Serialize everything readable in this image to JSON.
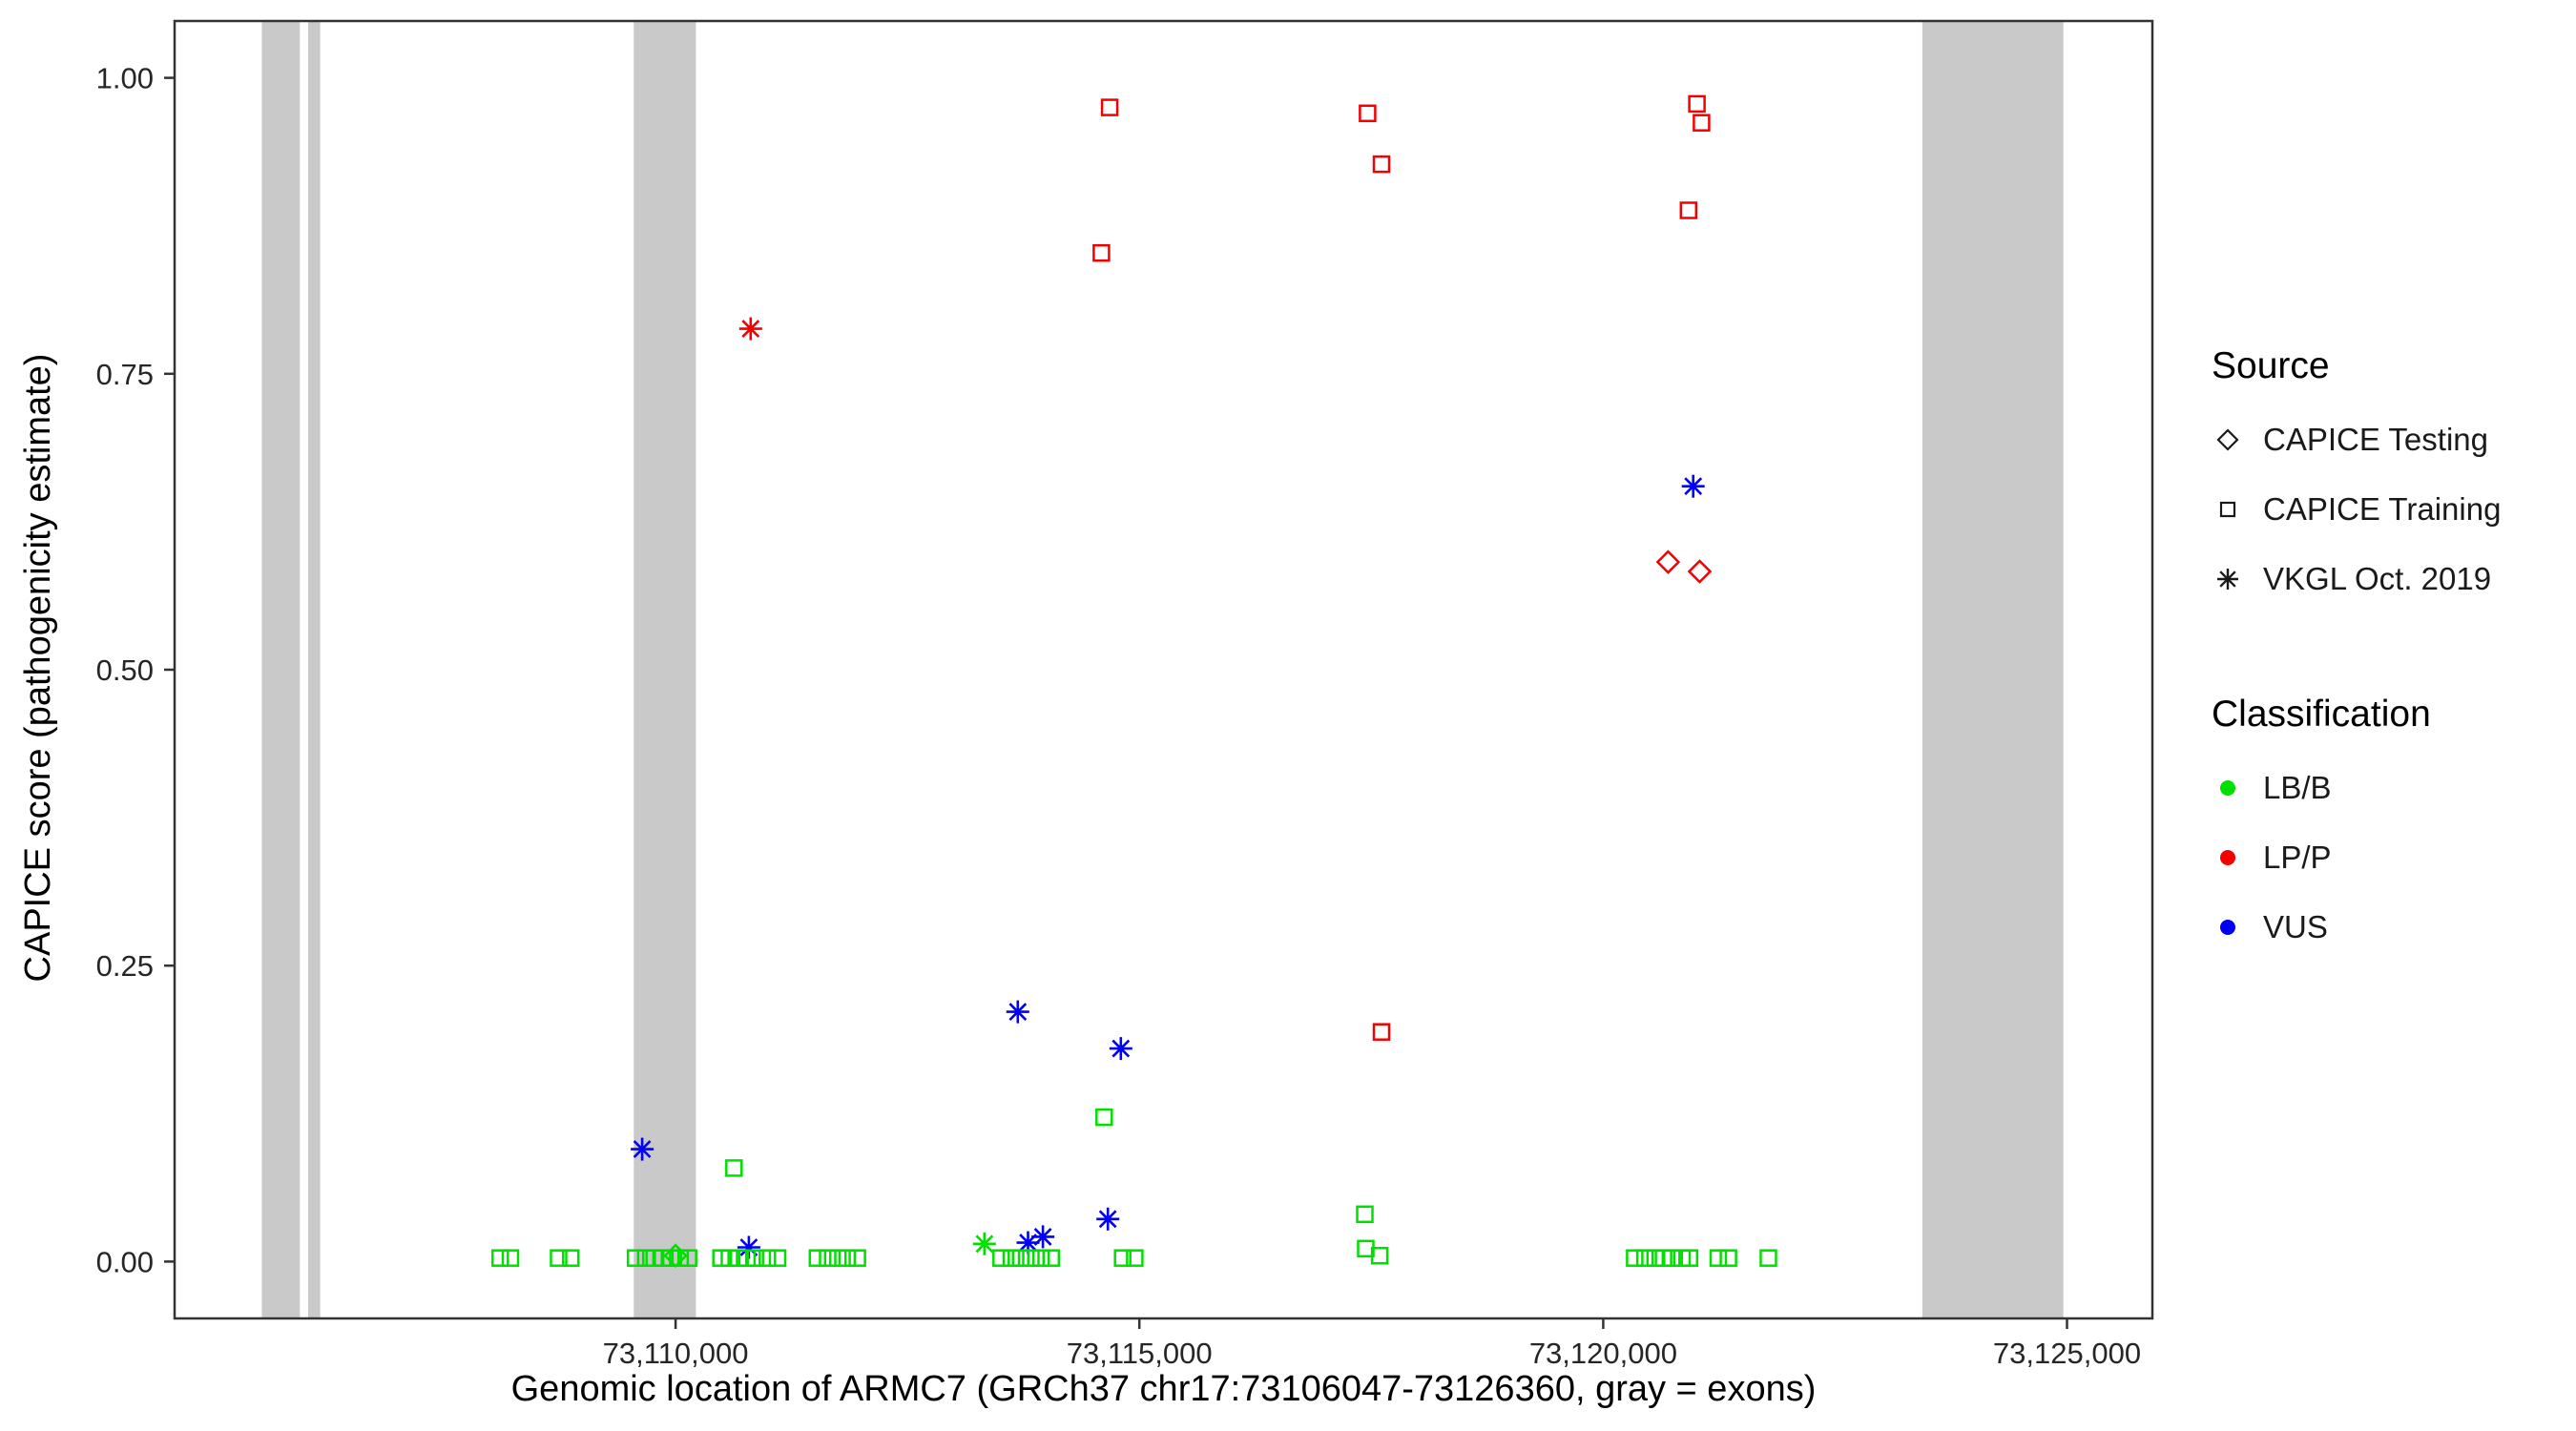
{
  "legend": {
    "source": {
      "title": "Source",
      "items": [
        {
          "label": "CAPICE Testing",
          "shape": "diamond"
        },
        {
          "label": "CAPICE Training",
          "shape": "square"
        },
        {
          "label": "VKGL Oct. 2019",
          "shape": "asterisk"
        }
      ]
    },
    "classification": {
      "title": "Classification",
      "items": [
        {
          "label": "LB/B",
          "color": "#00E000"
        },
        {
          "label": "LP/P",
          "color": "#F50000"
        },
        {
          "label": "VUS",
          "color": "#0000F5"
        }
      ]
    }
  },
  "chart_data": {
    "type": "scatter",
    "title": "",
    "xlabel": "Genomic location of ARMC7 (GRCh37 chr17:73106047-73126360, gray = exons)",
    "ylabel": "CAPICE score (pathogenicity estimate)",
    "xlim": [
      73104600,
      73125920
    ],
    "ylim": [
      -0.048,
      1.048
    ],
    "grid": "off",
    "legend_position": "right",
    "x_ticks": [
      {
        "value": 73110000,
        "label": "73,110,000"
      },
      {
        "value": 73115000,
        "label": "73,115,000"
      },
      {
        "value": 73120000,
        "label": "73,120,000"
      },
      {
        "value": 73125000,
        "label": "73,125,000"
      }
    ],
    "y_ticks": [
      {
        "value": 0.0,
        "label": "0.00"
      },
      {
        "value": 0.25,
        "label": "0.25"
      },
      {
        "value": 0.5,
        "label": "0.50"
      },
      {
        "value": 0.75,
        "label": "0.75"
      },
      {
        "value": 1.0,
        "label": "1.00"
      }
    ],
    "band_color": "#C9C9C9",
    "exon_bands": [
      {
        "start": 73105540,
        "end": 73105950
      },
      {
        "start": 73106040,
        "end": 73106170
      },
      {
        "start": 73109550,
        "end": 73110220
      },
      {
        "start": 73123440,
        "end": 73124960
      }
    ],
    "colors": {
      "LB/B": "#00E000",
      "LP/P": "#F50000",
      "VUS": "#0000F5"
    },
    "shapes": {
      "CAPICE Testing": "diamond",
      "CAPICE Training": "square",
      "VKGL Oct. 2019": "asterisk"
    },
    "points": [
      {
        "x": 73114680,
        "y": 0.975,
        "source": "CAPICE Training",
        "classification": "LP/P"
      },
      {
        "x": 73114590,
        "y": 0.852,
        "source": "CAPICE Training",
        "classification": "LP/P"
      },
      {
        "x": 73117460,
        "y": 0.97,
        "source": "CAPICE Training",
        "classification": "LP/P"
      },
      {
        "x": 73117610,
        "y": 0.927,
        "source": "CAPICE Training",
        "classification": "LP/P"
      },
      {
        "x": 73121010,
        "y": 0.978,
        "source": "CAPICE Training",
        "classification": "LP/P"
      },
      {
        "x": 73121060,
        "y": 0.962,
        "source": "CAPICE Training",
        "classification": "LP/P"
      },
      {
        "x": 73120920,
        "y": 0.888,
        "source": "CAPICE Training",
        "classification": "LP/P"
      },
      {
        "x": 73117610,
        "y": 0.194,
        "source": "CAPICE Training",
        "classification": "LP/P"
      },
      {
        "x": 73110810,
        "y": 0.788,
        "source": "VKGL Oct. 2019",
        "classification": "LP/P"
      },
      {
        "x": 73120700,
        "y": 0.591,
        "source": "CAPICE Testing",
        "classification": "LP/P"
      },
      {
        "x": 73121040,
        "y": 0.583,
        "source": "CAPICE Testing",
        "classification": "LP/P"
      },
      {
        "x": 73120970,
        "y": 0.655,
        "source": "VKGL Oct. 2019",
        "classification": "VUS"
      },
      {
        "x": 73113690,
        "y": 0.211,
        "source": "VKGL Oct. 2019",
        "classification": "VUS"
      },
      {
        "x": 73114800,
        "y": 0.18,
        "source": "VKGL Oct. 2019",
        "classification": "VUS"
      },
      {
        "x": 73114660,
        "y": 0.036,
        "source": "VKGL Oct. 2019",
        "classification": "VUS"
      },
      {
        "x": 73109640,
        "y": 0.095,
        "source": "VKGL Oct. 2019",
        "classification": "VUS"
      },
      {
        "x": 73110790,
        "y": 0.012,
        "source": "VKGL Oct. 2019",
        "classification": "VUS"
      },
      {
        "x": 73113800,
        "y": 0.016,
        "source": "VKGL Oct. 2019",
        "classification": "VUS"
      },
      {
        "x": 73113960,
        "y": 0.021,
        "source": "VKGL Oct. 2019",
        "classification": "VUS"
      },
      {
        "x": 73113330,
        "y": 0.015,
        "source": "VKGL Oct. 2019",
        "classification": "LB/B"
      },
      {
        "x": 73110000,
        "y": 0.005,
        "source": "CAPICE Testing",
        "classification": "LB/B"
      },
      {
        "x": 73110630,
        "y": 0.079,
        "source": "CAPICE Training",
        "classification": "LB/B"
      },
      {
        "x": 73114620,
        "y": 0.122,
        "source": "CAPICE Training",
        "classification": "LB/B"
      },
      {
        "x": 73117430,
        "y": 0.04,
        "source": "CAPICE Training",
        "classification": "LB/B"
      },
      {
        "x": 73117440,
        "y": 0.011,
        "source": "CAPICE Training",
        "classification": "LB/B"
      },
      {
        "x": 73117590,
        "y": 0.005,
        "source": "CAPICE Training",
        "classification": "LB/B"
      },
      {
        "x": 73108110,
        "y": 0.003,
        "source": "CAPICE Training",
        "classification": "LB/B"
      },
      {
        "x": 73108220,
        "y": 0.003,
        "source": "CAPICE Training",
        "classification": "LB/B"
      },
      {
        "x": 73108740,
        "y": 0.003,
        "source": "CAPICE Training",
        "classification": "LB/B"
      },
      {
        "x": 73108870,
        "y": 0.003,
        "source": "CAPICE Training",
        "classification": "LB/B"
      },
      {
        "x": 73109570,
        "y": 0.003,
        "source": "CAPICE Training",
        "classification": "LB/B"
      },
      {
        "x": 73109680,
        "y": 0.003,
        "source": "CAPICE Training",
        "classification": "LB/B"
      },
      {
        "x": 73109770,
        "y": 0.003,
        "source": "CAPICE Training",
        "classification": "LB/B"
      },
      {
        "x": 73109860,
        "y": 0.003,
        "source": "CAPICE Training",
        "classification": "LB/B"
      },
      {
        "x": 73109950,
        "y": 0.003,
        "source": "CAPICE Training",
        "classification": "LB/B"
      },
      {
        "x": 73110050,
        "y": 0.003,
        "source": "CAPICE Training",
        "classification": "LB/B"
      },
      {
        "x": 73110140,
        "y": 0.003,
        "source": "CAPICE Training",
        "classification": "LB/B"
      },
      {
        "x": 73110490,
        "y": 0.003,
        "source": "CAPICE Training",
        "classification": "LB/B"
      },
      {
        "x": 73110580,
        "y": 0.003,
        "source": "CAPICE Training",
        "classification": "LB/B"
      },
      {
        "x": 73110680,
        "y": 0.003,
        "source": "CAPICE Training",
        "classification": "LB/B"
      },
      {
        "x": 73110770,
        "y": 0.003,
        "source": "CAPICE Training",
        "classification": "LB/B"
      },
      {
        "x": 73110860,
        "y": 0.003,
        "source": "CAPICE Training",
        "classification": "LB/B"
      },
      {
        "x": 73110990,
        "y": 0.003,
        "source": "CAPICE Training",
        "classification": "LB/B"
      },
      {
        "x": 73111100,
        "y": 0.003,
        "source": "CAPICE Training",
        "classification": "LB/B"
      },
      {
        "x": 73111530,
        "y": 0.003,
        "source": "CAPICE Training",
        "classification": "LB/B"
      },
      {
        "x": 73111640,
        "y": 0.003,
        "source": "CAPICE Training",
        "classification": "LB/B"
      },
      {
        "x": 73111750,
        "y": 0.003,
        "source": "CAPICE Training",
        "classification": "LB/B"
      },
      {
        "x": 73111850,
        "y": 0.003,
        "source": "CAPICE Training",
        "classification": "LB/B"
      },
      {
        "x": 73111960,
        "y": 0.003,
        "source": "CAPICE Training",
        "classification": "LB/B"
      },
      {
        "x": 73113510,
        "y": 0.003,
        "source": "CAPICE Training",
        "classification": "LB/B"
      },
      {
        "x": 73113620,
        "y": 0.003,
        "source": "CAPICE Training",
        "classification": "LB/B"
      },
      {
        "x": 73113720,
        "y": 0.003,
        "source": "CAPICE Training",
        "classification": "LB/B"
      },
      {
        "x": 73113830,
        "y": 0.003,
        "source": "CAPICE Training",
        "classification": "LB/B"
      },
      {
        "x": 73113940,
        "y": 0.003,
        "source": "CAPICE Training",
        "classification": "LB/B"
      },
      {
        "x": 73114050,
        "y": 0.003,
        "source": "CAPICE Training",
        "classification": "LB/B"
      },
      {
        "x": 73114820,
        "y": 0.003,
        "source": "CAPICE Training",
        "classification": "LB/B"
      },
      {
        "x": 73114950,
        "y": 0.003,
        "source": "CAPICE Training",
        "classification": "LB/B"
      },
      {
        "x": 73120340,
        "y": 0.003,
        "source": "CAPICE Training",
        "classification": "LB/B"
      },
      {
        "x": 73120450,
        "y": 0.003,
        "source": "CAPICE Training",
        "classification": "LB/B"
      },
      {
        "x": 73120560,
        "y": 0.003,
        "source": "CAPICE Training",
        "classification": "LB/B"
      },
      {
        "x": 73120650,
        "y": 0.003,
        "source": "CAPICE Training",
        "classification": "LB/B"
      },
      {
        "x": 73120740,
        "y": 0.003,
        "source": "CAPICE Training",
        "classification": "LB/B"
      },
      {
        "x": 73120850,
        "y": 0.003,
        "source": "CAPICE Training",
        "classification": "LB/B"
      },
      {
        "x": 73120930,
        "y": 0.003,
        "source": "CAPICE Training",
        "classification": "LB/B"
      },
      {
        "x": 73121240,
        "y": 0.003,
        "source": "CAPICE Training",
        "classification": "LB/B"
      },
      {
        "x": 73121350,
        "y": 0.003,
        "source": "CAPICE Training",
        "classification": "LB/B"
      },
      {
        "x": 73121780,
        "y": 0.003,
        "source": "CAPICE Training",
        "classification": "LB/B"
      }
    ]
  }
}
